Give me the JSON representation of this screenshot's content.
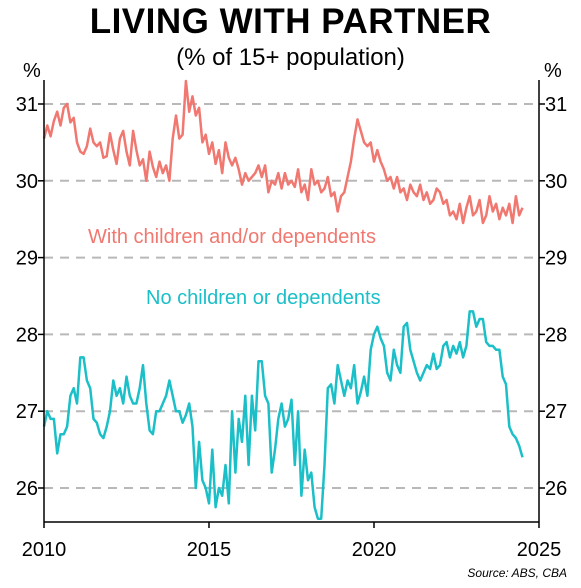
{
  "title": "LIVING WITH PARTNER",
  "subtitle": "(% of 15+ population)",
  "source": "Source: ABS, CBA",
  "colors": {
    "with_children": "#f07870",
    "no_children": "#1bbfc8",
    "grid": "#b8b8b8",
    "axis": "#000000"
  },
  "chart_data": {
    "type": "line",
    "xlabel": "",
    "ylabel_left": "%",
    "ylabel_right": "%",
    "xlim": [
      2010,
      2025
    ],
    "ylim": [
      25.6,
      31.3
    ],
    "x_ticks": [
      2010,
      2015,
      2020,
      2025
    ],
    "y_ticks": [
      26,
      27,
      28,
      29,
      30,
      31
    ],
    "grid": "horizontal dashed",
    "series": [
      {
        "name": "With children and/or dependents",
        "color": "#f07870",
        "x": [
          2010.0,
          2010.1,
          2010.2,
          2010.3,
          2010.4,
          2010.5,
          2010.6,
          2010.7,
          2010.8,
          2010.9,
          2011.0,
          2011.1,
          2011.2,
          2011.3,
          2011.4,
          2011.5,
          2011.6,
          2011.7,
          2011.8,
          2011.9,
          2012.0,
          2012.1,
          2012.2,
          2012.3,
          2012.4,
          2012.5,
          2012.6,
          2012.7,
          2012.8,
          2012.9,
          2013.0,
          2013.1,
          2013.2,
          2013.3,
          2013.4,
          2013.5,
          2013.6,
          2013.7,
          2013.8,
          2013.9,
          2014.0,
          2014.1,
          2014.2,
          2014.3,
          2014.4,
          2014.5,
          2014.6,
          2014.7,
          2014.8,
          2014.9,
          2015.0,
          2015.1,
          2015.2,
          2015.3,
          2015.4,
          2015.5,
          2015.6,
          2015.7,
          2015.8,
          2015.9,
          2016.0,
          2016.1,
          2016.2,
          2016.3,
          2016.4,
          2016.5,
          2016.6,
          2016.7,
          2016.8,
          2016.9,
          2017.0,
          2017.1,
          2017.2,
          2017.3,
          2017.4,
          2017.5,
          2017.6,
          2017.7,
          2017.8,
          2017.9,
          2018.0,
          2018.1,
          2018.2,
          2018.3,
          2018.4,
          2018.5,
          2018.6,
          2018.7,
          2018.8,
          2018.9,
          2019.0,
          2019.1,
          2019.2,
          2019.3,
          2019.4,
          2019.5,
          2019.6,
          2019.7,
          2019.8,
          2019.9,
          2020.0,
          2020.1,
          2020.2,
          2020.3,
          2020.4,
          2020.5,
          2020.6,
          2020.7,
          2020.8,
          2020.9,
          2021.0,
          2021.1,
          2021.2,
          2021.3,
          2021.4,
          2021.5,
          2021.6,
          2021.7,
          2021.8,
          2021.9,
          2022.0,
          2022.1,
          2022.2,
          2022.3,
          2022.4,
          2022.5,
          2022.6,
          2022.7,
          2022.8,
          2022.9,
          2023.0,
          2023.1,
          2023.2,
          2023.3,
          2023.4,
          2023.5,
          2023.6,
          2023.7,
          2023.8,
          2023.9,
          2024.0,
          2024.1,
          2024.2,
          2024.3,
          2024.4,
          2024.5
        ],
        "y": [
          30.55,
          30.72,
          30.58,
          30.78,
          30.9,
          30.72,
          30.95,
          31.0,
          30.76,
          30.82,
          30.5,
          30.38,
          30.35,
          30.45,
          30.68,
          30.5,
          30.45,
          30.5,
          30.3,
          30.32,
          30.62,
          30.4,
          30.22,
          30.55,
          30.65,
          30.38,
          30.2,
          30.65,
          30.4,
          30.2,
          30.28,
          30.0,
          30.38,
          30.18,
          30.05,
          30.25,
          30.1,
          30.2,
          30.0,
          30.55,
          30.85,
          30.55,
          30.6,
          31.3,
          30.9,
          31.1,
          30.85,
          30.95,
          30.5,
          30.6,
          30.35,
          30.5,
          30.22,
          30.4,
          30.1,
          30.5,
          30.3,
          30.2,
          30.3,
          30.15,
          29.95,
          30.1,
          30.0,
          30.05,
          30.1,
          30.2,
          30.05,
          30.2,
          29.85,
          30.0,
          29.95,
          30.1,
          29.9,
          30.1,
          29.95,
          30.0,
          29.92,
          30.15,
          29.85,
          29.95,
          29.75,
          30.15,
          29.95,
          30.0,
          29.85,
          29.9,
          30.05,
          29.8,
          29.85,
          29.6,
          29.8,
          29.85,
          30.05,
          30.25,
          30.55,
          30.8,
          30.65,
          30.5,
          30.45,
          30.5,
          30.25,
          30.4,
          30.25,
          30.15,
          30.0,
          30.05,
          29.9,
          30.05,
          29.85,
          29.9,
          29.75,
          29.95,
          29.85,
          29.8,
          29.95,
          29.75,
          29.85,
          29.7,
          29.75,
          29.9,
          29.85,
          29.7,
          29.75,
          29.55,
          29.6,
          29.5,
          29.7,
          29.45,
          29.65,
          29.8,
          29.55,
          29.6,
          29.75,
          29.45,
          29.55,
          29.8,
          29.6,
          29.7,
          29.5,
          29.65,
          29.55,
          29.7,
          29.45,
          29.8,
          29.55,
          29.65
        ]
      },
      {
        "name": "No children or dependents",
        "color": "#1bbfc8",
        "x": [
          2010.0,
          2010.1,
          2010.2,
          2010.3,
          2010.4,
          2010.5,
          2010.6,
          2010.7,
          2010.8,
          2010.9,
          2011.0,
          2011.1,
          2011.2,
          2011.3,
          2011.4,
          2011.5,
          2011.6,
          2011.7,
          2011.8,
          2011.9,
          2012.0,
          2012.1,
          2012.2,
          2012.3,
          2012.4,
          2012.5,
          2012.6,
          2012.7,
          2012.8,
          2012.9,
          2013.0,
          2013.1,
          2013.2,
          2013.3,
          2013.4,
          2013.5,
          2013.6,
          2013.7,
          2013.8,
          2013.9,
          2014.0,
          2014.1,
          2014.2,
          2014.3,
          2014.4,
          2014.5,
          2014.6,
          2014.7,
          2014.8,
          2014.9,
          2015.0,
          2015.1,
          2015.2,
          2015.3,
          2015.4,
          2015.5,
          2015.6,
          2015.7,
          2015.8,
          2015.9,
          2016.0,
          2016.1,
          2016.2,
          2016.3,
          2016.4,
          2016.5,
          2016.6,
          2016.7,
          2016.8,
          2016.9,
          2017.0,
          2017.1,
          2017.2,
          2017.3,
          2017.4,
          2017.5,
          2017.6,
          2017.7,
          2017.8,
          2017.9,
          2018.0,
          2018.1,
          2018.2,
          2018.3,
          2018.4,
          2018.5,
          2018.6,
          2018.7,
          2018.8,
          2018.9,
          2019.0,
          2019.1,
          2019.2,
          2019.3,
          2019.4,
          2019.5,
          2019.6,
          2019.7,
          2019.8,
          2019.9,
          2020.0,
          2020.1,
          2020.2,
          2020.3,
          2020.4,
          2020.5,
          2020.6,
          2020.7,
          2020.8,
          2020.9,
          2021.0,
          2021.1,
          2021.2,
          2021.3,
          2021.4,
          2021.5,
          2021.6,
          2021.7,
          2021.8,
          2021.9,
          2022.0,
          2022.1,
          2022.2,
          2022.3,
          2022.4,
          2022.5,
          2022.6,
          2022.7,
          2022.8,
          2022.9,
          2023.0,
          2023.1,
          2023.2,
          2023.3,
          2023.4,
          2023.5,
          2023.6,
          2023.7,
          2023.8,
          2023.9,
          2024.0,
          2024.1,
          2024.2,
          2024.3,
          2024.4,
          2024.5
        ],
        "y": [
          26.8,
          27.0,
          26.9,
          26.9,
          26.45,
          26.7,
          26.7,
          26.8,
          27.2,
          27.3,
          27.1,
          27.7,
          27.7,
          27.4,
          27.3,
          26.9,
          26.85,
          26.7,
          26.65,
          26.8,
          27.0,
          27.4,
          27.2,
          27.3,
          27.1,
          27.45,
          27.2,
          27.1,
          27.1,
          27.3,
          27.6,
          27.1,
          26.75,
          26.7,
          27.0,
          27.0,
          27.1,
          27.2,
          27.4,
          27.2,
          27.0,
          27.0,
          26.85,
          26.95,
          27.1,
          26.8,
          26.0,
          26.6,
          26.1,
          26.0,
          25.8,
          26.5,
          25.75,
          26.0,
          25.9,
          26.3,
          25.8,
          27.0,
          26.2,
          26.9,
          26.6,
          27.2,
          26.3,
          27.2,
          26.75,
          27.65,
          27.65,
          27.2,
          27.1,
          26.2,
          26.5,
          26.9,
          27.1,
          26.8,
          26.9,
          27.15,
          26.3,
          27.0,
          25.9,
          26.5,
          26.1,
          26.2,
          25.75,
          25.6,
          25.6,
          26.3,
          27.3,
          27.35,
          27.1,
          27.6,
          27.4,
          27.2,
          27.4,
          27.3,
          27.6,
          27.1,
          27.25,
          27.45,
          27.2,
          27.8,
          28.0,
          28.1,
          27.95,
          27.85,
          27.5,
          27.4,
          27.8,
          27.6,
          27.5,
          28.1,
          28.15,
          27.8,
          27.65,
          27.5,
          27.4,
          27.5,
          27.6,
          27.55,
          27.75,
          27.55,
          27.6,
          27.85,
          27.9,
          27.7,
          27.85,
          27.75,
          27.9,
          27.7,
          27.85,
          28.3,
          28.3,
          28.1,
          28.2,
          28.2,
          27.9,
          27.85,
          27.85,
          27.8,
          27.8,
          27.45,
          27.35,
          26.8,
          26.7,
          26.65,
          26.55,
          26.4
        ]
      }
    ],
    "annotations": [
      {
        "text": "With children and/or dependents",
        "series": 0
      },
      {
        "text": "No children or dependents",
        "series": 1
      }
    ]
  }
}
